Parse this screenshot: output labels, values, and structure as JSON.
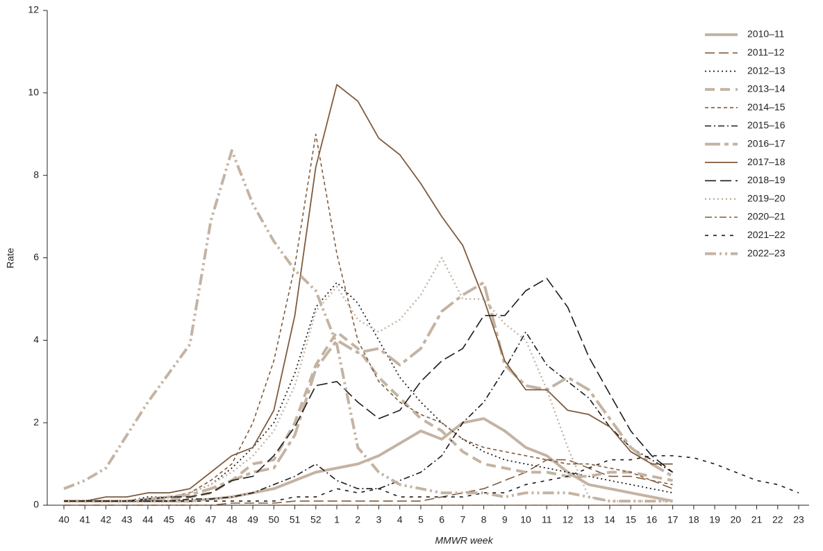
{
  "chart_data": {
    "type": "line",
    "x_label": "MMWR week",
    "y_label": "Rate",
    "categories": [
      "40",
      "41",
      "42",
      "43",
      "44",
      "45",
      "46",
      "47",
      "48",
      "49",
      "50",
      "51",
      "52",
      "1",
      "2",
      "3",
      "4",
      "5",
      "6",
      "7",
      "8",
      "9",
      "10",
      "11",
      "12",
      "13",
      "14",
      "15",
      "16",
      "17",
      "18",
      "19",
      "20",
      "21",
      "22",
      "23"
    ],
    "ylim": [
      0,
      12
    ],
    "yticks": [
      0,
      2,
      4,
      6,
      8,
      10,
      12
    ],
    "series": [
      {
        "name": "2010–11",
        "color": "#c4b3a3",
        "dash": "none",
        "width": 4,
        "values": [
          0.1,
          0.1,
          0.1,
          0.1,
          0.1,
          0.1,
          0.1,
          0.15,
          0.2,
          0.3,
          0.4,
          0.6,
          0.8,
          0.9,
          1.0,
          1.2,
          1.5,
          1.8,
          1.6,
          2.0,
          2.1,
          1.8,
          1.4,
          1.2,
          0.8,
          0.5,
          0.4,
          0.3,
          0.2,
          0.1,
          null,
          null,
          null,
          null,
          null,
          null
        ]
      },
      {
        "name": "2011–12",
        "color": "#7f5a3c",
        "dash": "14 6",
        "width": 1.6,
        "values": [
          0,
          0,
          0,
          0,
          0,
          0,
          0,
          0,
          0.05,
          0.05,
          0.05,
          0.1,
          0.1,
          0.1,
          0.1,
          0.1,
          0.1,
          0.1,
          0.2,
          0.3,
          0.4,
          0.6,
          0.8,
          1.1,
          1.1,
          0.9,
          0.7,
          0.7,
          0.6,
          0.4,
          null,
          null,
          null,
          null,
          null,
          null
        ]
      },
      {
        "name": "2012–13",
        "color": "#1a1a1a",
        "dash": "2 4",
        "width": 1.8,
        "values": [
          0.1,
          0.1,
          0.1,
          0.1,
          0.2,
          0.2,
          0.3,
          0.5,
          0.9,
          1.4,
          2.0,
          3.2,
          4.8,
          5.4,
          4.9,
          4.0,
          3.1,
          2.5,
          2.0,
          1.6,
          1.3,
          1.1,
          1.0,
          0.9,
          0.8,
          0.7,
          0.6,
          0.5,
          0.4,
          0.3,
          null,
          null,
          null,
          null,
          null,
          null
        ]
      },
      {
        "name": "2013–14",
        "color": "#c4b3a3",
        "dash": "14 8",
        "width": 4,
        "values": [
          0.1,
          0.1,
          0.1,
          0.1,
          0.1,
          0.15,
          0.2,
          0.3,
          0.6,
          1.0,
          1.1,
          2.0,
          3.4,
          4.2,
          3.8,
          3.1,
          2.6,
          2.1,
          1.8,
          1.3,
          1.0,
          0.9,
          0.8,
          0.8,
          0.7,
          0.7,
          0.8,
          0.8,
          0.7,
          0.6,
          null,
          null,
          null,
          null,
          null,
          null
        ]
      },
      {
        "name": "2014–15",
        "color": "#7f5a3c",
        "dash": "5 4",
        "width": 1.6,
        "values": [
          0.1,
          0.1,
          0.1,
          0.1,
          0.1,
          0.2,
          0.3,
          0.6,
          1.0,
          2.0,
          3.5,
          5.8,
          9.0,
          6.1,
          4.0,
          3.0,
          2.5,
          2.2,
          2.0,
          1.6,
          1.4,
          1.3,
          1.2,
          1.1,
          1.0,
          1.0,
          0.9,
          0.8,
          0.6,
          0.5,
          null,
          null,
          null,
          null,
          null,
          null
        ]
      },
      {
        "name": "2015–16",
        "color": "#1a1a1a",
        "dash": "9 4 2 4",
        "width": 1.6,
        "values": [
          0.1,
          0.1,
          0.1,
          0.1,
          0.1,
          0.1,
          0.15,
          0.15,
          0.2,
          0.3,
          0.5,
          0.7,
          1.0,
          0.6,
          0.4,
          0.4,
          0.6,
          0.8,
          1.2,
          2.0,
          2.5,
          3.3,
          4.2,
          3.4,
          3.0,
          2.6,
          1.9,
          1.4,
          1.1,
          0.8,
          null,
          null,
          null,
          null,
          null,
          null
        ]
      },
      {
        "name": "2016–17",
        "color": "#c4b3a3",
        "dash": "22 6 6 6",
        "width": 4,
        "values": [
          0.1,
          0.1,
          0.1,
          0.1,
          0.15,
          0.2,
          0.25,
          0.4,
          0.6,
          0.8,
          0.9,
          1.7,
          3.3,
          4.0,
          3.7,
          3.8,
          3.4,
          3.8,
          4.7,
          5.1,
          5.4,
          3.4,
          2.9,
          2.8,
          3.1,
          2.8,
          2.1,
          1.4,
          1.0,
          0.7,
          null,
          null,
          null,
          null,
          null,
          null
        ]
      },
      {
        "name": "2017–18",
        "color": "#7f5a3c",
        "dash": "none",
        "width": 1.8,
        "values": [
          0.1,
          0.1,
          0.2,
          0.2,
          0.3,
          0.3,
          0.4,
          0.8,
          1.2,
          1.4,
          2.3,
          4.6,
          8.2,
          10.2,
          9.8,
          8.9,
          8.5,
          7.8,
          7.0,
          6.3,
          5.0,
          3.5,
          2.8,
          2.8,
          2.3,
          2.2,
          1.9,
          1.3,
          1.0,
          1.0,
          null,
          null,
          null,
          null,
          null,
          null
        ]
      },
      {
        "name": "2018–19",
        "color": "#1a1a1a",
        "dash": "16 6",
        "width": 1.6,
        "values": [
          0.1,
          0.1,
          0.1,
          0.1,
          0.15,
          0.2,
          0.2,
          0.3,
          0.6,
          0.7,
          1.2,
          1.9,
          2.9,
          3.0,
          2.5,
          2.1,
          2.3,
          3.0,
          3.5,
          3.8,
          4.6,
          4.6,
          5.2,
          5.5,
          4.8,
          3.6,
          2.7,
          1.8,
          1.2,
          0.8,
          null,
          null,
          null,
          null,
          null,
          null
        ]
      },
      {
        "name": "2019–20",
        "color": "#c4b3a3",
        "dash": "2 4",
        "width": 2.5,
        "values": [
          0.1,
          0.1,
          0.1,
          0.1,
          0.15,
          0.2,
          0.3,
          0.5,
          0.8,
          1.2,
          1.8,
          2.9,
          4.7,
          5.3,
          4.5,
          4.2,
          4.5,
          5.1,
          6.0,
          5.0,
          5.0,
          4.4,
          4.0,
          2.8,
          1.4,
          0.2,
          0.1,
          0.1,
          0.1,
          0.1,
          null,
          null,
          null,
          null,
          null,
          null
        ]
      },
      {
        "name": "2020–21",
        "color": "#7f5a3c",
        "dash": "10 4 3 4",
        "width": 1.6,
        "values": [
          0,
          0,
          0,
          0,
          0,
          0,
          0,
          0,
          0,
          0,
          0,
          0,
          0,
          0,
          0,
          0,
          0,
          0,
          0,
          0,
          0,
          0,
          0,
          0,
          0,
          0,
          0,
          0,
          0,
          0,
          null,
          null,
          null,
          null,
          null,
          null
        ]
      },
      {
        "name": "2021–22",
        "color": "#1a1a1a",
        "dash": "5 7",
        "width": 1.6,
        "values": [
          0.1,
          0.1,
          0.1,
          0.1,
          0.1,
          0.1,
          0.1,
          0.1,
          0.1,
          0.1,
          0.1,
          0.2,
          0.2,
          0.4,
          0.3,
          0.4,
          0.2,
          0.2,
          0.2,
          0.2,
          0.3,
          0.3,
          0.5,
          0.6,
          0.7,
          0.9,
          1.1,
          1.1,
          1.2,
          1.2,
          1.15,
          1.0,
          0.8,
          0.6,
          0.5,
          0.3
        ]
      },
      {
        "name": "2022–23",
        "color": "#c4b3a3",
        "dash": "16 5 3 5 3 5",
        "width": 4,
        "values": [
          0.4,
          0.6,
          0.9,
          1.7,
          2.5,
          3.2,
          3.9,
          6.9,
          8.6,
          7.3,
          6.4,
          5.7,
          5.2,
          3.9,
          1.4,
          0.8,
          0.5,
          0.4,
          0.3,
          0.3,
          0.3,
          0.2,
          0.3,
          0.3,
          0.3,
          0.2,
          0.1,
          0.1,
          0.1,
          0.1,
          null,
          null,
          null,
          null,
          null,
          null
        ]
      }
    ]
  }
}
